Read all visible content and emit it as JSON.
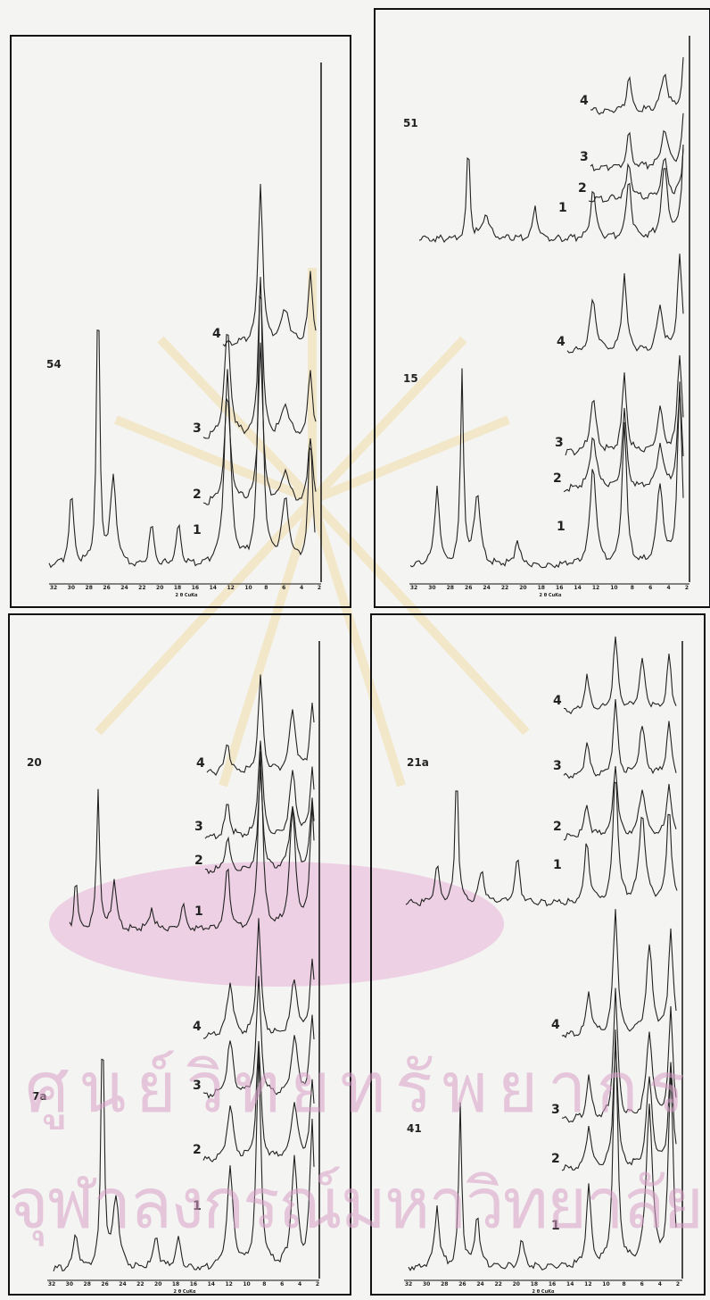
{
  "axis": {
    "ticks": [
      "32",
      "30",
      "28",
      "26",
      "24",
      "22",
      "20",
      "18",
      "16",
      "14",
      "12",
      "10",
      "8",
      "6",
      "4",
      "2"
    ],
    "title": "2 θ CuKα"
  },
  "panels": [
    {
      "samples": [
        {
          "label": "54",
          "curves": [
            "1",
            "2",
            "3",
            "4"
          ]
        }
      ]
    },
    {
      "samples": [
        {
          "label": "51",
          "curves": [
            "1",
            "2",
            "3",
            "4"
          ]
        },
        {
          "label": "15",
          "curves": [
            "1",
            "2",
            "3",
            "4"
          ]
        }
      ]
    },
    {
      "samples": [
        {
          "label": "20",
          "curves": [
            "1",
            "2",
            "3",
            "4"
          ]
        },
        {
          "label": "7a",
          "curves": [
            "1",
            "2",
            "3",
            "4"
          ]
        }
      ]
    },
    {
      "samples": [
        {
          "label": "21a",
          "curves": [
            "1",
            "2",
            "3",
            "4"
          ]
        },
        {
          "label": "41",
          "curves": [
            "1",
            "2",
            "3",
            "4"
          ]
        }
      ]
    }
  ],
  "watermark": {
    "line1": "ศูนย์วิทยทรัพยากร",
    "line2": "จุฬาลงกรณ์มหาวิทยาลัย"
  }
}
